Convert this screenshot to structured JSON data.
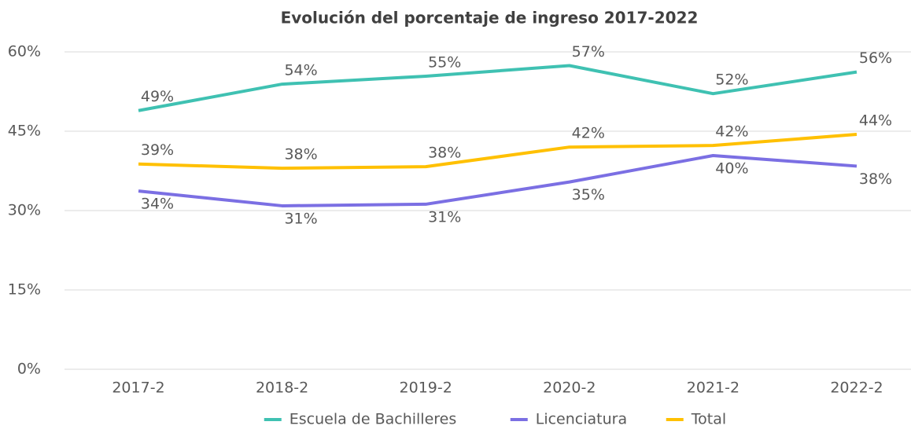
{
  "chart_data": {
    "type": "line",
    "title": "Evolución del porcentaje de ingreso 2017-2022",
    "categories": [
      "2017-2",
      "2018-2",
      "2019-2",
      "2020-2",
      "2021-2",
      "2022-2"
    ],
    "series": [
      {
        "name": "Escuela de Bachilleres",
        "color": "#3fc1b2",
        "values": [
          48.9,
          53.9,
          55.4,
          57.4,
          52.1,
          56.2
        ],
        "value_labels": [
          "49%",
          "54%",
          "55%",
          "57%",
          "52%",
          "56%"
        ]
      },
      {
        "name": "Licenciatura",
        "color": "#7b6fe3",
        "values": [
          33.7,
          30.9,
          31.2,
          35.4,
          40.4,
          38.4
        ],
        "value_labels": [
          "34%",
          "31%",
          "31%",
          "35%",
          "40%",
          "38%"
        ]
      },
      {
        "name": "Total",
        "color": "#ffc000",
        "values": [
          38.8,
          38.0,
          38.3,
          42.0,
          42.3,
          44.4
        ],
        "value_labels": [
          "39%",
          "38%",
          "38%",
          "42%",
          "42%",
          "44%"
        ]
      }
    ],
    "ylim": [
      0,
      60
    ],
    "yticks": [
      {
        "value": 0,
        "label": "0%"
      },
      {
        "value": 15,
        "label": "15%"
      },
      {
        "value": 30,
        "label": "30%"
      },
      {
        "value": 45,
        "label": "45%"
      },
      {
        "value": 60,
        "label": "60%"
      }
    ],
    "grid": true,
    "legend": "bottom"
  }
}
